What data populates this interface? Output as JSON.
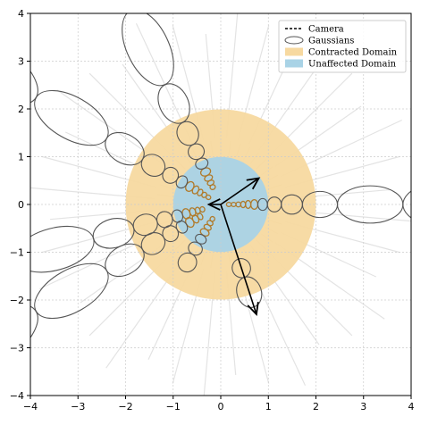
{
  "chart_data": {
    "type": "scatter",
    "title": "",
    "xlabel": "",
    "ylabel": "",
    "xlim": [
      -4,
      4
    ],
    "ylim": [
      -4,
      4
    ],
    "x_ticks": [
      "−4",
      "−3",
      "−2",
      "−1",
      "0",
      "1",
      "2",
      "3",
      "4"
    ],
    "y_ticks": [
      "−4",
      "−3",
      "−2",
      "−1",
      "0",
      "1",
      "2",
      "3",
      "4"
    ],
    "grid": true,
    "legend_position": "top-right",
    "legend": [
      {
        "label": "Camera",
        "kind": "camera"
      },
      {
        "label": "Gaussians",
        "kind": "ellipse"
      },
      {
        "label": "Contracted Domain",
        "kind": "patch",
        "color": "#f7d9a0"
      },
      {
        "label": "Unaffected Domain",
        "kind": "patch",
        "color": "#a9d3e6"
      }
    ],
    "regions": [
      {
        "name": "Contracted Domain",
        "shape": "disk",
        "radius": 2,
        "color": "#f7d9a0"
      },
      {
        "name": "Unaffected Domain",
        "shape": "disk",
        "radius": 1,
        "color": "#a9d3e6"
      }
    ],
    "cameras": [
      {
        "x": 0,
        "y": 0,
        "dx": 0.8,
        "dy": 0.55
      },
      {
        "x": 0,
        "y": 0,
        "dx": 0.75,
        "dy": -2.3
      },
      {
        "x": 0,
        "y": 0,
        "dx": -0.25,
        "dy": 0
      }
    ],
    "gaussian_rays": [
      {
        "angle_deg": 0,
        "r_start": 0.12,
        "r_end": 4.3
      },
      {
        "angle_deg": 150,
        "r_start": 0.25,
        "r_end": 4.6
      },
      {
        "angle_deg": 115,
        "r_start": 0.35,
        "r_end": 4.7
      },
      {
        "angle_deg": 195,
        "r_start": 0.35,
        "r_end": 4.3
      },
      {
        "angle_deg": 210,
        "r_start": 0.45,
        "r_end": 4.6
      },
      {
        "angle_deg": 240,
        "r_start": 0.3,
        "r_end": 1.3
      },
      {
        "angle_deg": 288,
        "r_start": 1.2,
        "r_end": 2.0
      }
    ],
    "colors": {
      "contracted": "#f7d9a0",
      "unaffected": "#a9d3e6",
      "gaussian_outline": "#555555",
      "gaussian_small": "#b07a2a",
      "grid": "#cccccc",
      "background_rays": "#d8d8d8"
    }
  }
}
